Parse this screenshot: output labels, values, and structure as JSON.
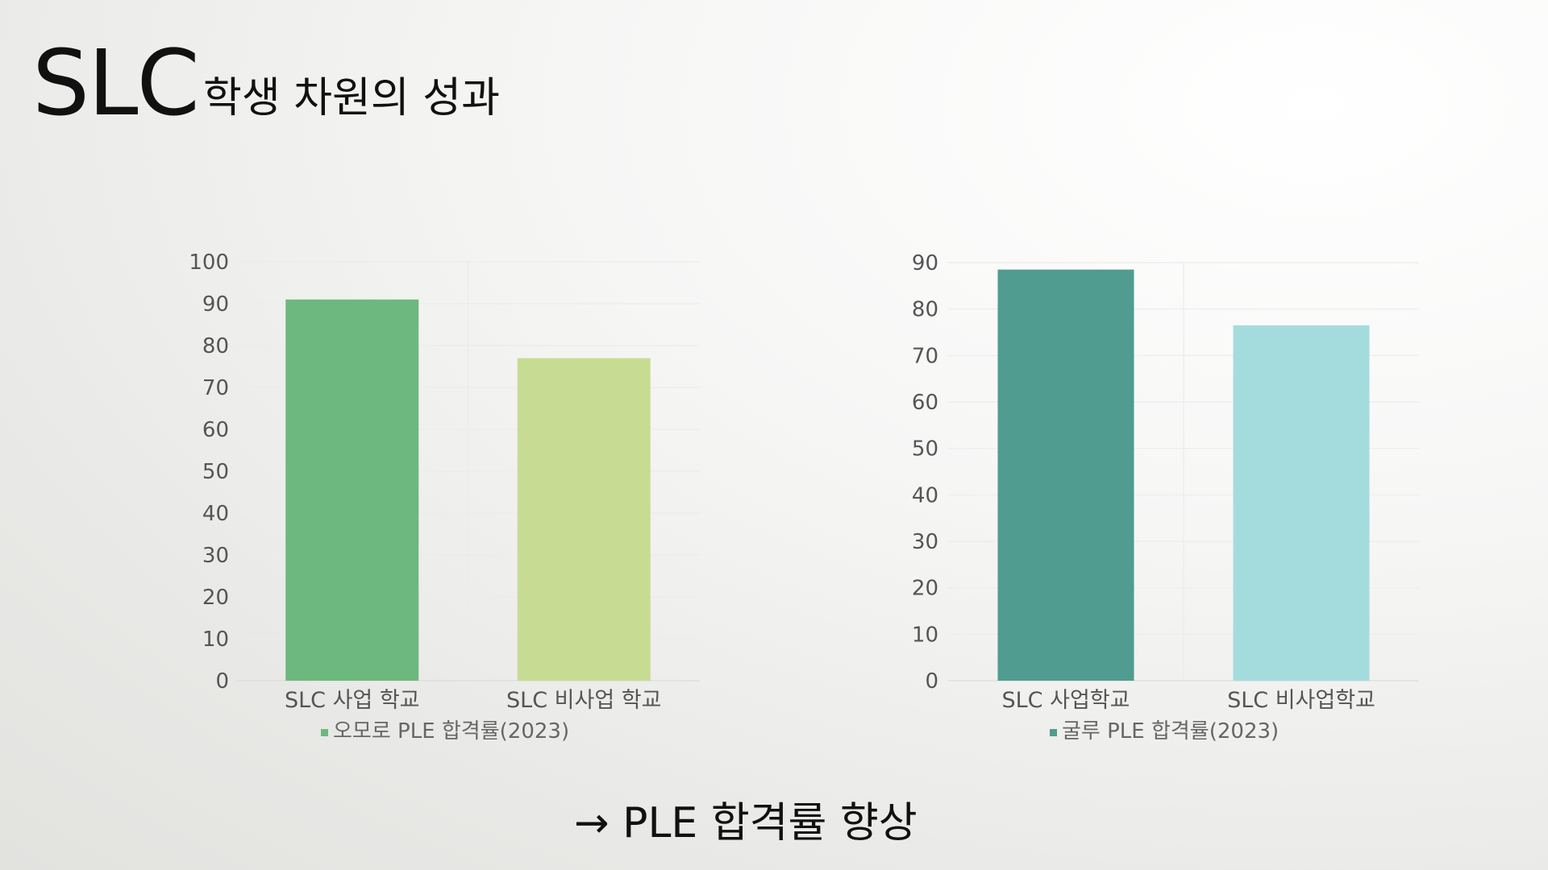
{
  "slide": {
    "title_main": "SLC",
    "title_sub": "학생 차원의 성과",
    "conclusion": "→ PLE 합격률 향상"
  },
  "chart_data": [
    {
      "type": "bar",
      "categories": [
        "SLC 사업 학교",
        "SLC 비사업 학교"
      ],
      "series": [
        {
          "name": "오모로 PLE 합격률(2023)",
          "values": [
            91,
            77
          ]
        }
      ],
      "colors": [
        "#6db87e",
        "#c7dc92"
      ],
      "legend_color": "#6db87e",
      "ylim": [
        0,
        100
      ],
      "yticks": [
        0,
        10,
        20,
        30,
        40,
        50,
        60,
        70,
        80,
        90,
        100
      ],
      "grid": true,
      "legend_position": "bottom"
    },
    {
      "type": "bar",
      "categories": [
        "SLC 사업학교",
        "SLC 비사업학교"
      ],
      "series": [
        {
          "name": "굴루 PLE 합격률(2023)",
          "values": [
            88.5,
            76.5
          ]
        }
      ],
      "colors": [
        "#509c90",
        "#a4dcdd"
      ],
      "legend_color": "#509c90",
      "ylim": [
        0,
        90
      ],
      "yticks": [
        0,
        10,
        20,
        30,
        40,
        50,
        60,
        70,
        80,
        90
      ],
      "grid": true,
      "legend_position": "bottom"
    }
  ]
}
